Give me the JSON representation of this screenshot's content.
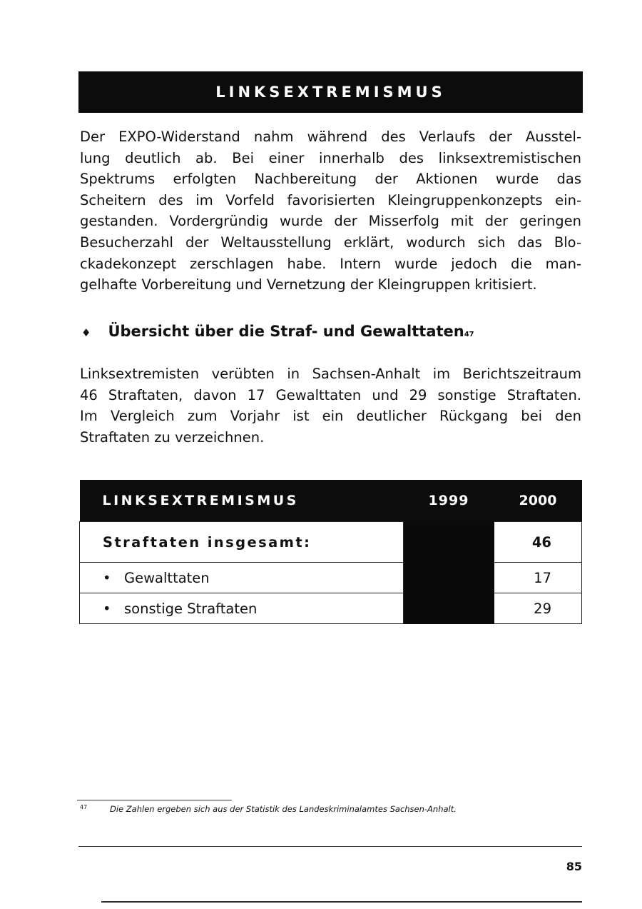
{
  "banner_title": "LINKSEXTREMISMUS",
  "intro_lines": [
    "Der EXPO-Widerstand nahm während des Verlaufs der Ausstel-",
    "lung deutlich ab. Bei einer innerhalb des linksextremistischen",
    "Spektrums erfolgten Nachbereitung der Aktionen wurde das",
    "Scheitern des im Vorfeld favorisierten Kleingruppenkonzepts ein-",
    "gestanden. Vordergründig wurde der Misserfolg mit der geringen",
    "Besucherzahl der Weltausstellung erklärt, wodurch sich das Blo-",
    "ckadekonzept zerschlagen habe. Intern wurde jedoch die man-",
    "gelhafte Vorbereitung und Vernetzung der Kleingruppen kritisiert."
  ],
  "section": {
    "bullet": "♦",
    "title": "Übersicht über die Straf- und Gewalttaten",
    "footnote_ref": "47"
  },
  "body_lines": [
    "Linksextremisten verübten in Sachsen-Anhalt im Berichtszeitraum",
    "46 Straftaten, davon 17 Gewalttaten und 29 sonstige Straftaten.",
    "Im Vergleich zum Vorjahr ist ein deutlicher Rückgang bei den",
    "Straftaten zu verzeichnen."
  ],
  "table": {
    "headers": [
      "LINKSEXTREMISMUS",
      "1999",
      "2000"
    ],
    "rows": [
      {
        "label": "Straftaten insgesamt:",
        "v1999": "",
        "v2000": "46"
      },
      {
        "bullet": "•",
        "label": "Gewalttaten",
        "v1999": "",
        "v2000": "17"
      },
      {
        "bullet": "•",
        "label": "sonstige Straftaten",
        "v1999": "",
        "v2000": "29"
      }
    ]
  },
  "footnote": {
    "number": "47",
    "text": "Die Zahlen ergeben sich aus der Statistik des Landeskriminalamtes Sachsen-Anhalt."
  },
  "page_number": "85"
}
